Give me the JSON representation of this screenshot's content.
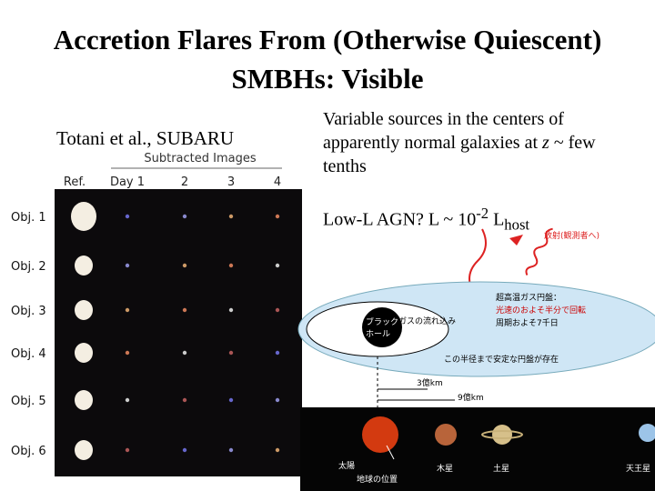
{
  "title": "Accretion Flares From (Otherwise Quiescent) SMBHs: Visible",
  "figure": {
    "caption": "Totani et al., SUBARU",
    "header": "Subtracted Images",
    "columns": [
      "Ref.",
      "Day 1",
      "2",
      "3",
      "4"
    ],
    "rows": [
      "Obj. 1",
      "Obj. 2",
      "Obj. 3",
      "Obj. 4",
      "Obj. 5",
      "Obj. 6"
    ]
  },
  "bullets": [
    {
      "parts": [
        "Variable sources in the centers of apparently normal galaxies at ",
        "z",
        " ~ few tenths"
      ]
    },
    {
      "parts": [
        "Low-L AGN?  L ~ 10",
        "-2",
        " L",
        "host"
      ]
    }
  ],
  "diagram": {
    "labels": [
      "放射(観測者へ)",
      "ブラック",
      "ホール",
      "ガスの流れ込み",
      "超高温ガス円盤：",
      "光速のおよそ半分で回転",
      "周期およそ7千日",
      "この半径まで安定な円盤が存在",
      "3億km",
      "9億km",
      "太陽",
      "地球の位置",
      "木星",
      "土星",
      "天王星"
    ]
  }
}
